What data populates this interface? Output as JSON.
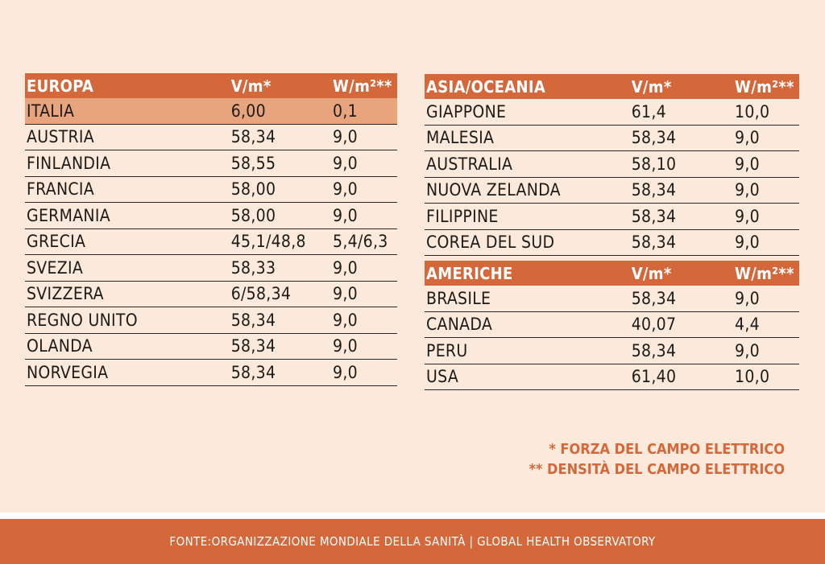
{
  "chart_data": [
    {
      "type": "table",
      "columns": [
        "EUROPA",
        "V/m*",
        "W/m²**"
      ],
      "highlight_row": "ITALIA",
      "rows": [
        [
          "ITALIA",
          "6,00",
          "0,1"
        ],
        [
          "AUSTRIA",
          "58,34",
          "9,0"
        ],
        [
          "FINLANDIA",
          "58,55",
          "9,0"
        ],
        [
          "FRANCIA",
          "58,00",
          "9,0"
        ],
        [
          "GERMANIA",
          "58,00",
          "9,0"
        ],
        [
          "GRECIA",
          "45,1/48,8",
          "5,4/6,3"
        ],
        [
          "SVEZIA",
          "58,33",
          "9,0"
        ],
        [
          "SVIZZERA",
          "6/58,34",
          "9,0"
        ],
        [
          "REGNO UNITO",
          "58,34",
          "9,0"
        ],
        [
          "OLANDA",
          "58,34",
          "9,0"
        ],
        [
          "NORVEGIA",
          "58,34",
          "9,0"
        ]
      ]
    },
    {
      "type": "table",
      "columns": [
        "ASIA/OCEANIA",
        "V/m*",
        "W/m²**"
      ],
      "rows": [
        [
          "GIAPPONE",
          "61,4",
          "10,0"
        ],
        [
          "MALESIA",
          "58,34",
          "9,0"
        ],
        [
          "AUSTRALIA",
          "58,10",
          "9,0"
        ],
        [
          "NUOVA ZELANDA",
          "58,34",
          "9,0"
        ],
        [
          "FILIPPINE",
          "58,34",
          "9,0"
        ],
        [
          "COREA DEL SUD",
          "58,34",
          "9,0"
        ]
      ]
    },
    {
      "type": "table",
      "columns": [
        "AMERICHE",
        "V/m*",
        "W/m²**"
      ],
      "rows": [
        [
          "BRASILE",
          "58,34",
          "9,0"
        ],
        [
          "CANADA",
          "40,07",
          "4,4"
        ],
        [
          "PERU",
          "58,34",
          "9,0"
        ],
        [
          "USA",
          "61,40",
          "10,0"
        ]
      ]
    }
  ],
  "notes": [
    "* FORZA DEL CAMPO ELETTRICO",
    "** DENSITÀ DEL CAMPO ELETTRICO"
  ],
  "footer": "FONTE:ORGANIZZAZIONE MONDIALE DELLA SANITÀ | GLOBAL HEALTH OBSERVATORY",
  "colors": {
    "accent": "#d4683b",
    "highlight": "#e8a47c",
    "background": "#fbeadb"
  }
}
